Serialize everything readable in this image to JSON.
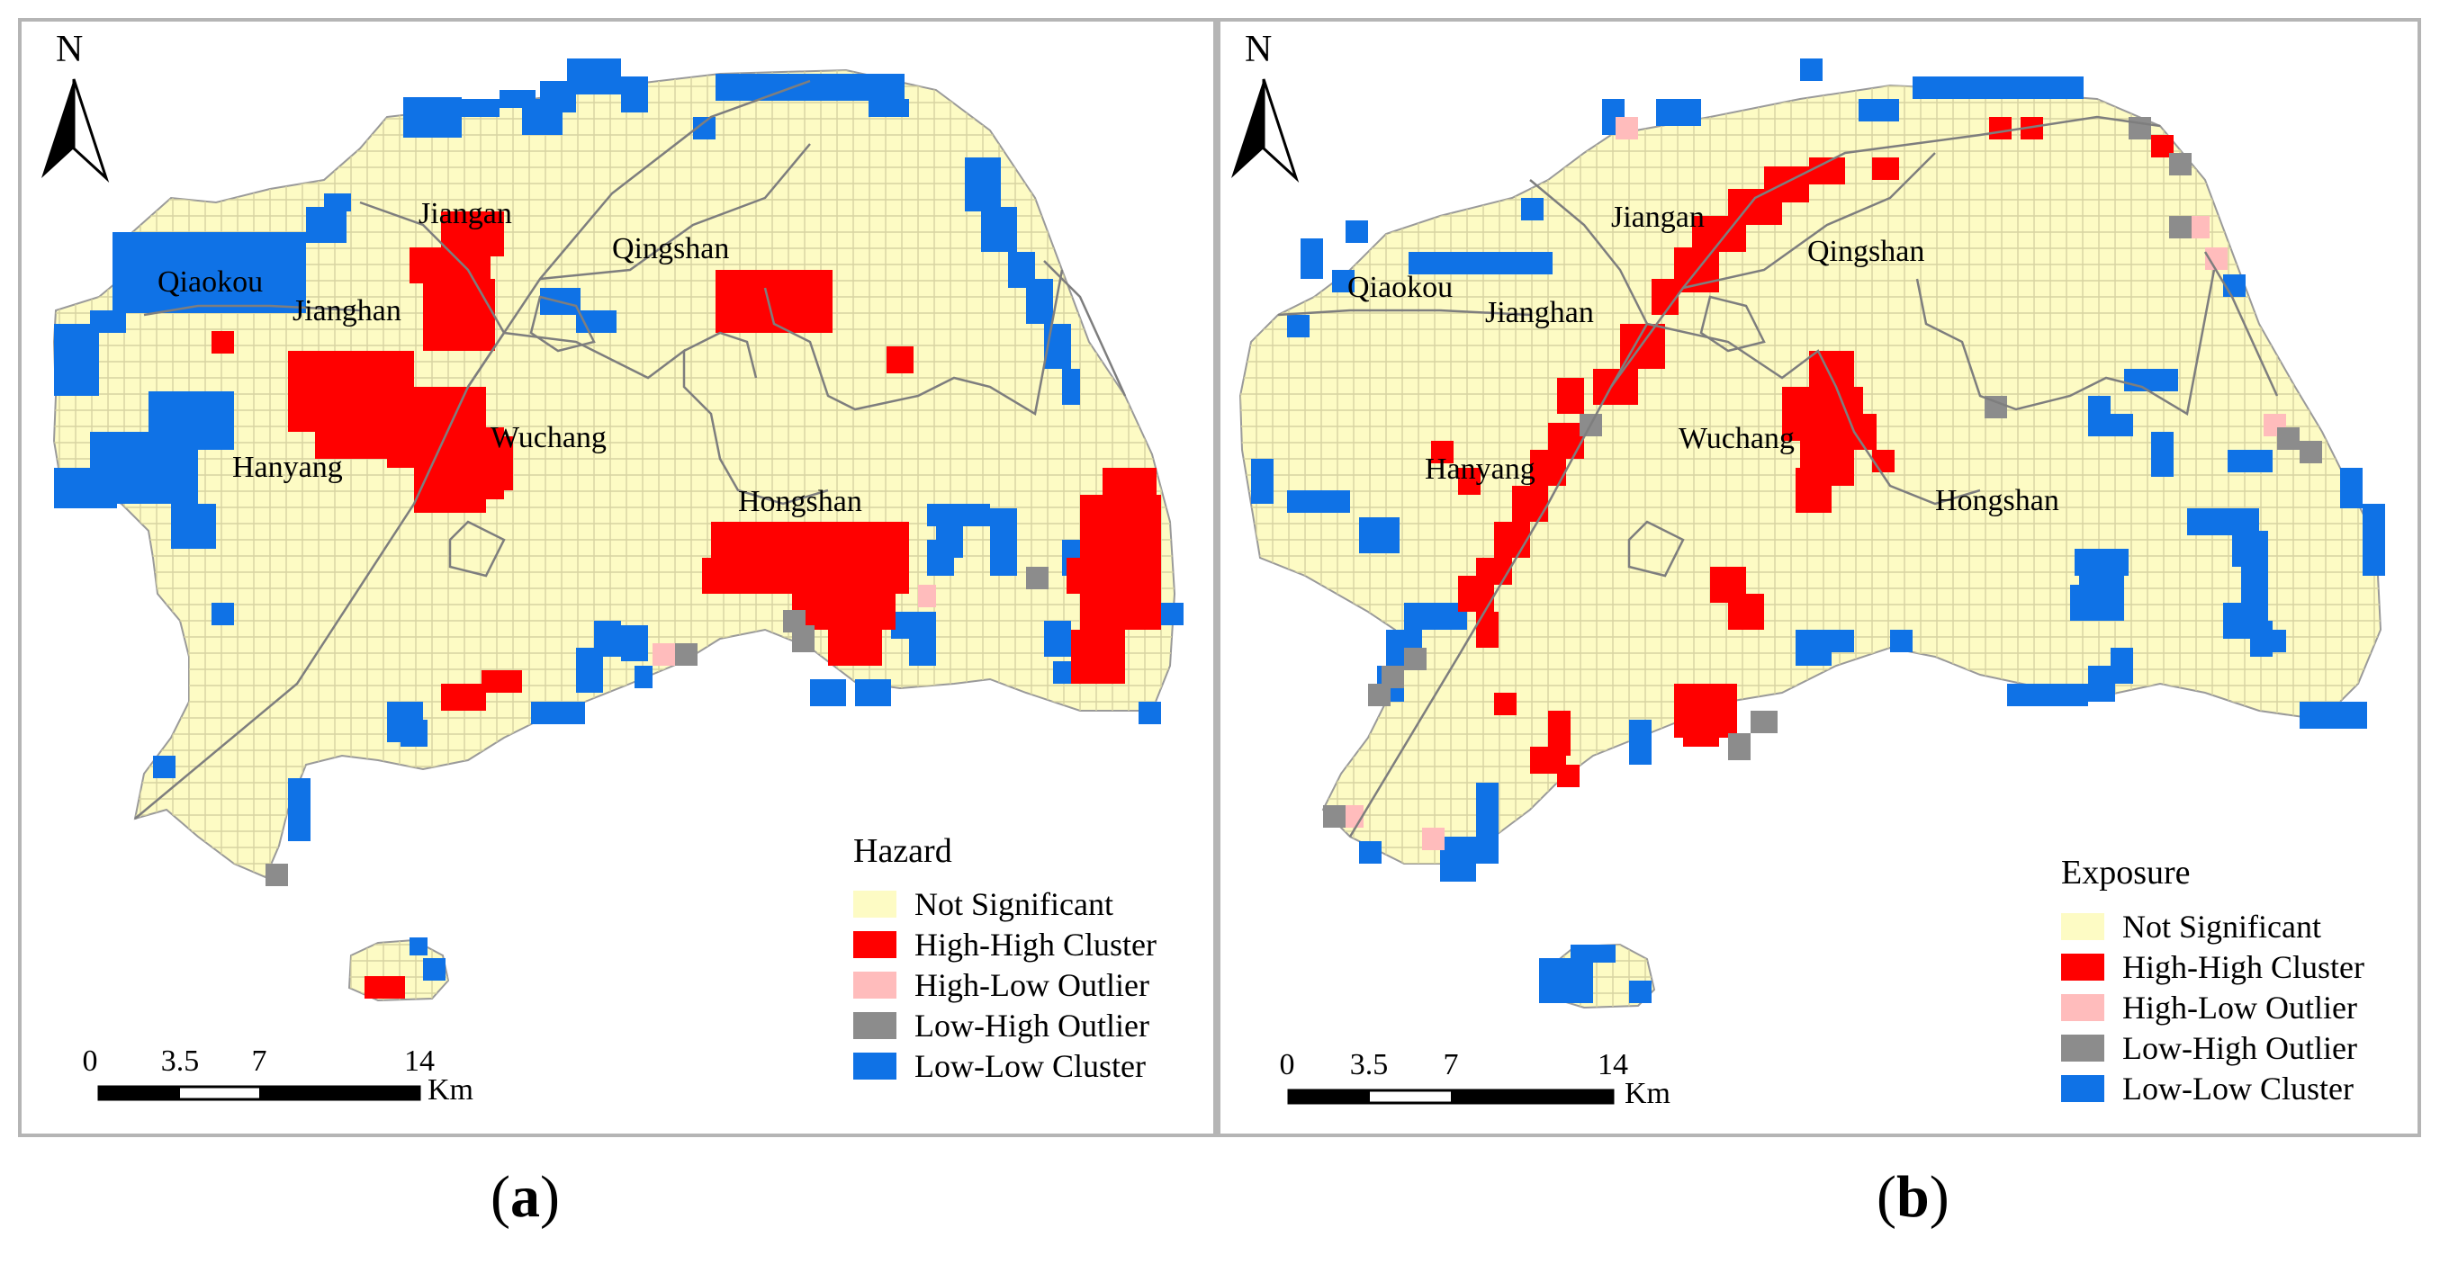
{
  "colors": {
    "not_significant": "#fdfbc4",
    "high_high": "#ff0000",
    "high_low": "#ffbcbc",
    "low_high": "#8c8c8c",
    "low_low": "#0f72e6",
    "grid_line": "#d7d3a2",
    "district_line": "#8a8a8a",
    "frame": "#b5b5b5"
  },
  "legend_items": [
    {
      "key": "not_significant",
      "label": "Not Significant"
    },
    {
      "key": "high_high",
      "label": "High-High Cluster"
    },
    {
      "key": "high_low",
      "label": "High-Low Outlier"
    },
    {
      "key": "low_high",
      "label": "Low-High Outlier"
    },
    {
      "key": "low_low",
      "label": "Low-Low Cluster"
    }
  ],
  "north_label": "N",
  "scale_bar": {
    "ticks": [
      "0",
      "3.5",
      "7",
      "14"
    ],
    "unit": "Km"
  },
  "panels": [
    {
      "id": "a",
      "legend_title": "Hazard",
      "caption_open": "(",
      "caption_letter": "a",
      "caption_close": ")",
      "districts": [
        "Jiangan",
        "Qiaokou",
        "Jianghan",
        "Qingshan",
        "Hanyang",
        "Wuchang",
        "Hongshan"
      ]
    },
    {
      "id": "b",
      "legend_title": "Exposure",
      "caption_open": "(",
      "caption_letter": "b",
      "caption_close": ")",
      "districts": [
        "Jiangan",
        "Qingshan",
        "Qiaokou",
        "Jianghan",
        "Hanyang",
        "Wuchang",
        "Hongshan"
      ]
    }
  ]
}
